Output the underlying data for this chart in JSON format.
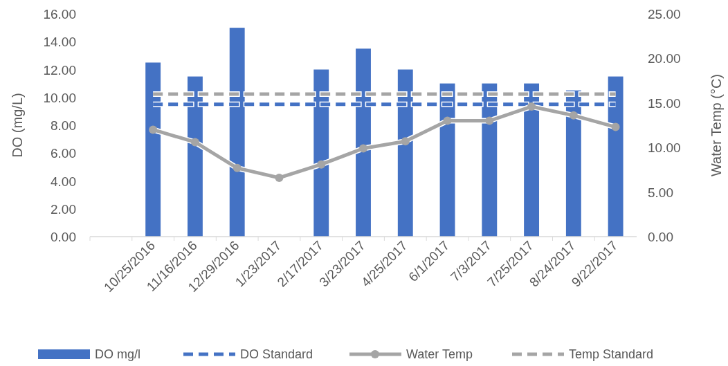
{
  "chart_data": {
    "type": "bar",
    "ylabel": "DO (mg/L)",
    "y2label": "Water Temp (°C)",
    "categories": [
      null,
      "10/25/2016",
      "11/16/2016",
      "12/29/2016",
      "1/23/2017",
      "2/17/2017",
      "3/23/2017",
      "4/25/2017",
      "6/1/2017",
      "7/3/2017",
      "7/25/2017",
      "8/24/2017",
      "9/22/2017"
    ],
    "series": [
      {
        "name": "DO mg/l",
        "color": "#4472c4",
        "values": [
          null,
          12.5,
          11.5,
          15,
          null,
          12,
          13.5,
          12,
          11,
          11,
          11,
          10.5,
          11.5
        ]
      },
      {
        "name": "DO Standard",
        "type": "line",
        "line_style": "dashed",
        "marker": "none",
        "color": "#4472c4",
        "values": [
          null,
          9.5,
          9.5,
          9.5,
          9.5,
          9.5,
          9.5,
          9.5,
          9.5,
          9.5,
          9.5,
          9.5,
          9.5
        ]
      },
      {
        "name": "Water Temp",
        "type": "line",
        "line_style": "solid",
        "marker": "circle",
        "axis": "y2",
        "color": "#a5a5a5",
        "values": [
          null,
          12.0,
          10.6,
          7.7,
          6.6,
          8.1,
          9.9,
          10.7,
          13.0,
          13.0,
          14.6,
          13.6,
          12.3
        ]
      },
      {
        "name": "Temp Standard",
        "type": "line",
        "line_style": "dashed",
        "marker": "none",
        "axis": "y2",
        "color": "#a5a5a5",
        "values": [
          null,
          16,
          16,
          16,
          16,
          16,
          16,
          16,
          16,
          16,
          16,
          16,
          16
        ]
      }
    ],
    "ylim": [
      0,
      16
    ],
    "yticks": [
      {
        "value": 0,
        "label": "0.00"
      },
      {
        "value": 2,
        "label": "2.00"
      },
      {
        "value": 4,
        "label": "4.00"
      },
      {
        "value": 6,
        "label": "6.00"
      },
      {
        "value": 8,
        "label": "8.00"
      },
      {
        "value": 10,
        "label": "10.00"
      },
      {
        "value": 12,
        "label": "12.00"
      },
      {
        "value": 14,
        "label": "14.00"
      },
      {
        "value": 16,
        "label": "16.00"
      }
    ],
    "y2lim": [
      0,
      25
    ],
    "y2ticks": [
      {
        "value": 0,
        "label": "0.00"
      },
      {
        "value": 5,
        "label": "5.00"
      },
      {
        "value": 10,
        "label": "10.00"
      },
      {
        "value": 15,
        "label": "15.00"
      },
      {
        "value": 20,
        "label": "20.00"
      },
      {
        "value": 25,
        "label": "25.00"
      }
    ],
    "grid": false,
    "legend": "bottom"
  }
}
